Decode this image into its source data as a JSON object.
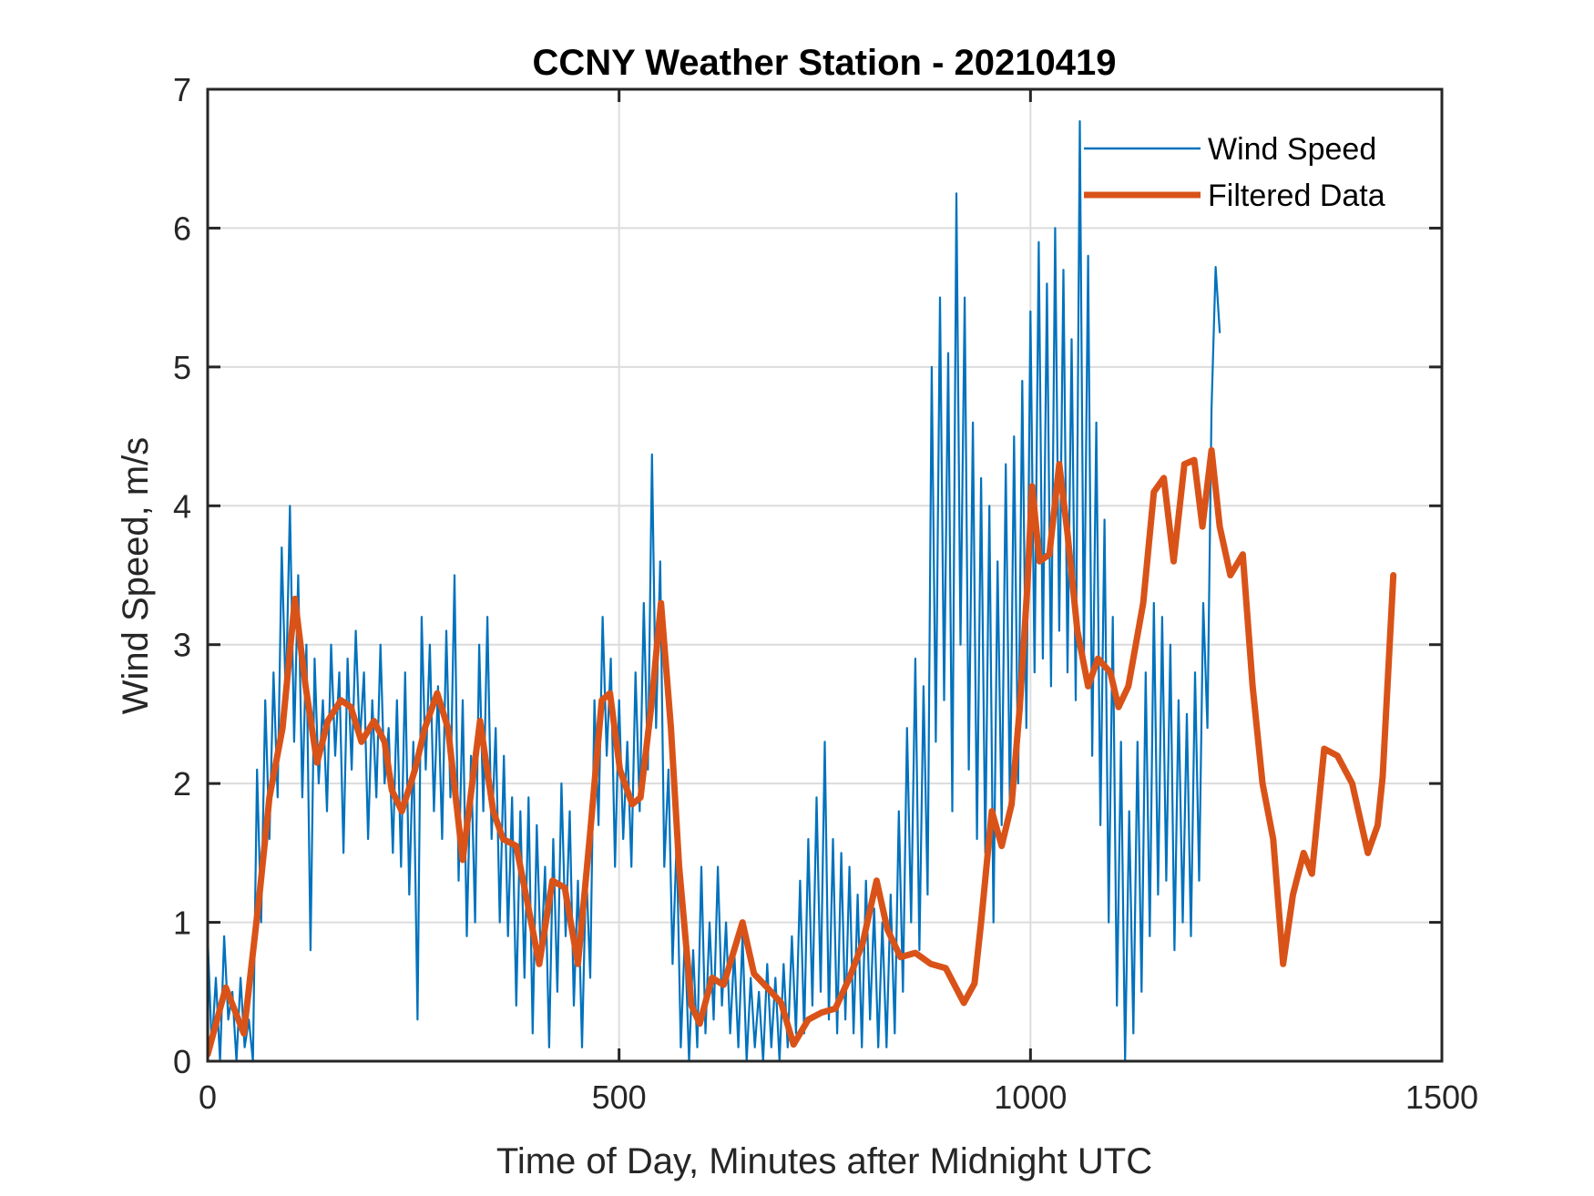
{
  "chart_data": {
    "type": "line",
    "title": "CCNY Weather Station - 20210419",
    "xlabel": "Time of Day, Minutes after Midnight UTC",
    "ylabel": "Wind Speed, m/s",
    "xlim": [
      0,
      1500
    ],
    "ylim": [
      0,
      7
    ],
    "xticks": [
      0,
      500,
      1000,
      1500
    ],
    "xtick_labels": [
      "0",
      "500",
      "1000",
      "1500"
    ],
    "yticks": [
      0,
      1,
      2,
      3,
      4,
      5,
      6,
      7
    ],
    "ytick_labels": [
      "0",
      "1",
      "2",
      "3",
      "4",
      "5",
      "6",
      "7"
    ],
    "grid": true,
    "legend": {
      "placement": "top-right",
      "entries": [
        {
          "label": "Wind Speed",
          "color": "#0072BD"
        },
        {
          "label": "Filtered Data",
          "color": "#D95319"
        }
      ]
    },
    "series": [
      {
        "name": "Wind Speed",
        "color": "#0072BD",
        "x_start": 0,
        "x_step": 5,
        "values": [
          0.9,
          0.1,
          0.6,
          0.0,
          0.9,
          0.3,
          0.5,
          0.0,
          0.6,
          0.1,
          0.3,
          0.0,
          2.1,
          1.0,
          2.6,
          1.6,
          2.8,
          1.9,
          3.7,
          2.6,
          4.0,
          2.3,
          3.5,
          1.9,
          3.0,
          0.8,
          2.9,
          2.0,
          2.6,
          1.8,
          3.0,
          2.2,
          2.8,
          1.5,
          2.9,
          2.1,
          3.1,
          2.3,
          2.8,
          1.6,
          2.6,
          1.9,
          3.0,
          2.0,
          2.4,
          1.5,
          2.6,
          1.4,
          2.8,
          1.2,
          2.3,
          0.3,
          3.2,
          2.1,
          3.0,
          1.8,
          2.7,
          1.6,
          3.1,
          1.9,
          3.5,
          1.3,
          2.6,
          0.9,
          2.2,
          1.0,
          3.0,
          1.8,
          3.2,
          1.6,
          2.4,
          1.0,
          2.2,
          0.9,
          1.9,
          0.4,
          1.8,
          0.6,
          1.9,
          0.2,
          1.7,
          0.7,
          1.4,
          0.1,
          1.6,
          0.5,
          2.0,
          0.9,
          1.8,
          0.4,
          1.3,
          0.1,
          1.4,
          0.6,
          2.6,
          1.7,
          3.2,
          2.2,
          2.9,
          1.4,
          2.6,
          1.6,
          2.3,
          1.4,
          2.8,
          1.8,
          3.3,
          2.1,
          4.37,
          2.4,
          3.6,
          1.4,
          2.1,
          0.7,
          1.6,
          0.1,
          0.9,
          0.0,
          0.8,
          0.1,
          1.4,
          0.2,
          1.0,
          0.3,
          1.4,
          0.4,
          1.0,
          0.2,
          0.8,
          0.1,
          0.9,
          0.0,
          0.6,
          0.1,
          0.5,
          0.0,
          0.7,
          0.1,
          0.6,
          0.0,
          0.7,
          0.1,
          0.9,
          0.2,
          1.3,
          0.2,
          1.6,
          0.4,
          1.9,
          0.5,
          2.3,
          0.3,
          1.6,
          0.2,
          1.5,
          0.3,
          1.4,
          0.2,
          1.2,
          0.1,
          1.3,
          0.3,
          1.1,
          0.1,
          1.0,
          0.1,
          1.2,
          0.2,
          1.8,
          0.5,
          2.4,
          1.0,
          2.9,
          0.8,
          2.7,
          1.2,
          5.0,
          2.3,
          5.5,
          2.6,
          5.1,
          1.8,
          6.25,
          3.0,
          5.5,
          2.1,
          4.6,
          1.6,
          4.2,
          1.5,
          4.0,
          1.0,
          3.6,
          1.7,
          4.3,
          1.8,
          4.5,
          2.0,
          4.9,
          2.4,
          5.4,
          2.8,
          5.9,
          2.9,
          5.6,
          2.7,
          6.0,
          3.1,
          5.7,
          2.8,
          5.2,
          2.6,
          6.77,
          2.9,
          5.8,
          2.2,
          4.6,
          1.7,
          3.9,
          1.0,
          3.2,
          0.4,
          2.3,
          0.0,
          1.8,
          0.2,
          2.3,
          0.5,
          2.8,
          0.9,
          3.3,
          1.2,
          3.2,
          1.3,
          3.0,
          0.8,
          2.6,
          1.0,
          2.5,
          0.9,
          2.8,
          1.3,
          3.3,
          2.4,
          4.7,
          5.72,
          5.25
        ]
      },
      {
        "name": "Filtered Data",
        "color": "#D95319",
        "x": [
          0,
          22,
          44,
          63,
          75,
          91,
          106,
          119,
          133,
          146,
          162,
          174,
          187,
          202,
          215,
          224,
          236,
          252,
          264,
          279,
          292,
          310,
          331,
          347,
          359,
          375,
          390,
          403,
          419,
          434,
          450,
          465,
          479,
          489,
          501,
          516,
          526,
          539,
          551,
          563,
          573,
          588,
          598,
          613,
          627,
          650,
          664,
          680,
          697,
          712,
          730,
          746,
          763,
          780,
          796,
          813,
          826,
          842,
          860,
          879,
          897,
          919,
          932,
          940,
          953,
          965,
          977,
          987,
          996,
          1002,
          1011,
          1023,
          1035,
          1045,
          1057,
          1070,
          1082,
          1097,
          1107,
          1119,
          1137,
          1150,
          1162,
          1174,
          1187,
          1199,
          1209,
          1220,
          1230,
          1243,
          1258,
          1270,
          1282,
          1295,
          1307,
          1319,
          1332,
          1342,
          1357,
          1373,
          1391,
          1410,
          1422,
          1428,
          1441
        ],
        "values": [
          0.05,
          0.53,
          0.2,
          1.2,
          1.9,
          2.4,
          3.33,
          2.7,
          2.15,
          2.45,
          2.6,
          2.55,
          2.3,
          2.45,
          2.3,
          1.95,
          1.8,
          2.1,
          2.4,
          2.65,
          2.4,
          1.45,
          2.45,
          1.8,
          1.6,
          1.55,
          1.1,
          0.7,
          1.3,
          1.25,
          0.7,
          1.65,
          2.6,
          2.65,
          2.1,
          1.85,
          1.9,
          2.55,
          3.3,
          2.4,
          1.4,
          0.4,
          0.27,
          0.6,
          0.55,
          1.0,
          0.63,
          0.53,
          0.42,
          0.12,
          0.3,
          0.35,
          0.38,
          0.6,
          0.85,
          1.3,
          0.95,
          0.75,
          0.78,
          0.7,
          0.67,
          0.42,
          0.56,
          1.0,
          1.8,
          1.55,
          1.85,
          2.55,
          3.4,
          4.14,
          3.6,
          3.65,
          4.3,
          3.8,
          3.1,
          2.7,
          2.9,
          2.8,
          2.55,
          2.7,
          3.3,
          4.1,
          4.2,
          3.6,
          4.3,
          4.33,
          3.85,
          4.4,
          3.85,
          3.5,
          3.65,
          2.7,
          2.0,
          1.6,
          0.7,
          1.2,
          1.5,
          1.35,
          2.25,
          2.2,
          2.0,
          1.5,
          1.7,
          2.05,
          3.5
        ]
      }
    ]
  }
}
